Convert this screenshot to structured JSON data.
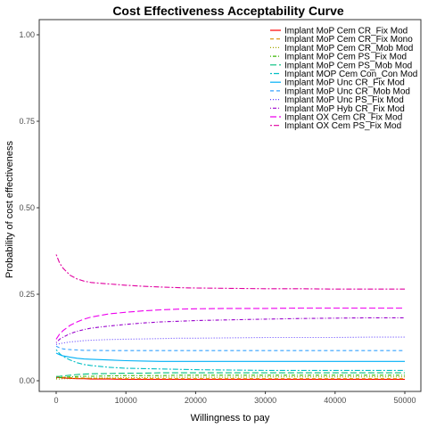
{
  "chart_data": {
    "type": "line",
    "title": "Cost Effectiveness Acceptability Curve",
    "xlabel": "Willingness to pay",
    "ylabel": "Probability of cost effectiveness",
    "xlim": [
      0,
      50000
    ],
    "ylim": [
      0,
      1
    ],
    "x_ticks": [
      0,
      10000,
      20000,
      30000,
      40000,
      50000
    ],
    "x_tick_labels": [
      "0",
      "10000",
      "20000",
      "30000",
      "40000",
      "50000"
    ],
    "y_ticks": [
      0,
      0.25,
      0.5,
      0.75,
      1
    ],
    "y_tick_labels": [
      "0.00",
      "0.25",
      "0.50",
      "0.75",
      "1.00"
    ],
    "grid": false,
    "legend_position": "top-right",
    "x": [
      0,
      500,
      1000,
      2000,
      3000,
      4000,
      5000,
      7500,
      10000,
      12500,
      15000,
      17500,
      20000,
      25000,
      30000,
      35000,
      40000,
      45000,
      50000
    ],
    "series": [
      {
        "name": "Implant MoP Cem CR_Fix Mod",
        "color": "#ff0000",
        "dash": "solid",
        "values": [
          0.01,
          0.009,
          0.008,
          0.007,
          0.006,
          0.006,
          0.005,
          0.005,
          0.004,
          0.004,
          0.004,
          0.004,
          0.004,
          0.004,
          0.004,
          0.004,
          0.004,
          0.004,
          0.004
        ]
      },
      {
        "name": "Implant MoP Cem CR_Fix Mono",
        "color": "#d89000",
        "dash": "dashed",
        "values": [
          0.012,
          0.011,
          0.01,
          0.009,
          0.008,
          0.008,
          0.007,
          0.007,
          0.006,
          0.006,
          0.006,
          0.006,
          0.006,
          0.006,
          0.006,
          0.006,
          0.006,
          0.006,
          0.006
        ]
      },
      {
        "name": "Implant MoP Cem CR_Mob Mod",
        "color": "#a3a500",
        "dash": "dotted",
        "values": [
          0.005,
          0.005,
          0.006,
          0.006,
          0.007,
          0.007,
          0.008,
          0.008,
          0.009,
          0.009,
          0.01,
          0.01,
          0.01,
          0.01,
          0.011,
          0.011,
          0.011,
          0.011,
          0.011
        ]
      },
      {
        "name": "Implant MoP Cem PS_Fix Mod",
        "color": "#39b600",
        "dash": "dotdash",
        "values": [
          0.008,
          0.009,
          0.01,
          0.011,
          0.012,
          0.013,
          0.013,
          0.014,
          0.015,
          0.015,
          0.015,
          0.016,
          0.016,
          0.016,
          0.016,
          0.016,
          0.016,
          0.016,
          0.016
        ]
      },
      {
        "name": "Implant MoP Cem PS_Mob Mod",
        "color": "#00bf7d",
        "dash": "longdash",
        "values": [
          0.012,
          0.013,
          0.014,
          0.016,
          0.018,
          0.019,
          0.02,
          0.021,
          0.022,
          0.022,
          0.023,
          0.023,
          0.023,
          0.023,
          0.023,
          0.023,
          0.023,
          0.023,
          0.023
        ]
      },
      {
        "name": "Implant MOP Cem Con_Con Mod",
        "color": "#00bfc4",
        "dash": "twodash",
        "values": [
          0.09,
          0.078,
          0.07,
          0.06,
          0.052,
          0.047,
          0.044,
          0.039,
          0.036,
          0.035,
          0.034,
          0.033,
          0.032,
          0.031,
          0.03,
          0.03,
          0.03,
          0.03,
          0.03
        ]
      },
      {
        "name": "Implant MoP Unc CR_Fix Mod",
        "color": "#00b0f6",
        "dash": "solid",
        "values": [
          0.08,
          0.075,
          0.072,
          0.068,
          0.065,
          0.063,
          0.062,
          0.06,
          0.058,
          0.057,
          0.056,
          0.056,
          0.056,
          0.056,
          0.056,
          0.056,
          0.056,
          0.056,
          0.056
        ]
      },
      {
        "name": "Implant MoP Unc CR_Mob Mod",
        "color": "#35a2ff",
        "dash": "dashed",
        "values": [
          0.1,
          0.095,
          0.092,
          0.09,
          0.089,
          0.088,
          0.088,
          0.087,
          0.087,
          0.087,
          0.087,
          0.087,
          0.087,
          0.087,
          0.087,
          0.087,
          0.087,
          0.087,
          0.087
        ]
      },
      {
        "name": "Implant MoP Unc PS_Fix Mod",
        "color": "#6040ff",
        "dash": "dotted",
        "values": [
          0.105,
          0.107,
          0.109,
          0.112,
          0.114,
          0.116,
          0.117,
          0.119,
          0.12,
          0.121,
          0.122,
          0.123,
          0.123,
          0.124,
          0.125,
          0.125,
          0.125,
          0.126,
          0.126
        ]
      },
      {
        "name": "Implant MoP Hyb CR_Fix Mod",
        "color": "#9900cc",
        "dash": "dotdash",
        "values": [
          0.11,
          0.12,
          0.126,
          0.136,
          0.143,
          0.148,
          0.152,
          0.158,
          0.163,
          0.167,
          0.17,
          0.172,
          0.174,
          0.176,
          0.178,
          0.18,
          0.181,
          0.182,
          0.182
        ]
      },
      {
        "name": "Implant OX Cem CR_Fix Mod",
        "color": "#ee00ee",
        "dash": "longdash",
        "values": [
          0.12,
          0.135,
          0.145,
          0.16,
          0.17,
          0.178,
          0.184,
          0.193,
          0.198,
          0.202,
          0.205,
          0.207,
          0.208,
          0.209,
          0.209,
          0.21,
          0.21,
          0.21,
          0.21
        ]
      },
      {
        "name": "Implant OX Cem PS_Fix Mod",
        "color": "#e000a0",
        "dash": "twodash",
        "values": [
          0.365,
          0.34,
          0.325,
          0.305,
          0.294,
          0.288,
          0.284,
          0.28,
          0.276,
          0.273,
          0.271,
          0.269,
          0.268,
          0.267,
          0.266,
          0.266,
          0.265,
          0.265,
          0.265
        ]
      }
    ]
  }
}
